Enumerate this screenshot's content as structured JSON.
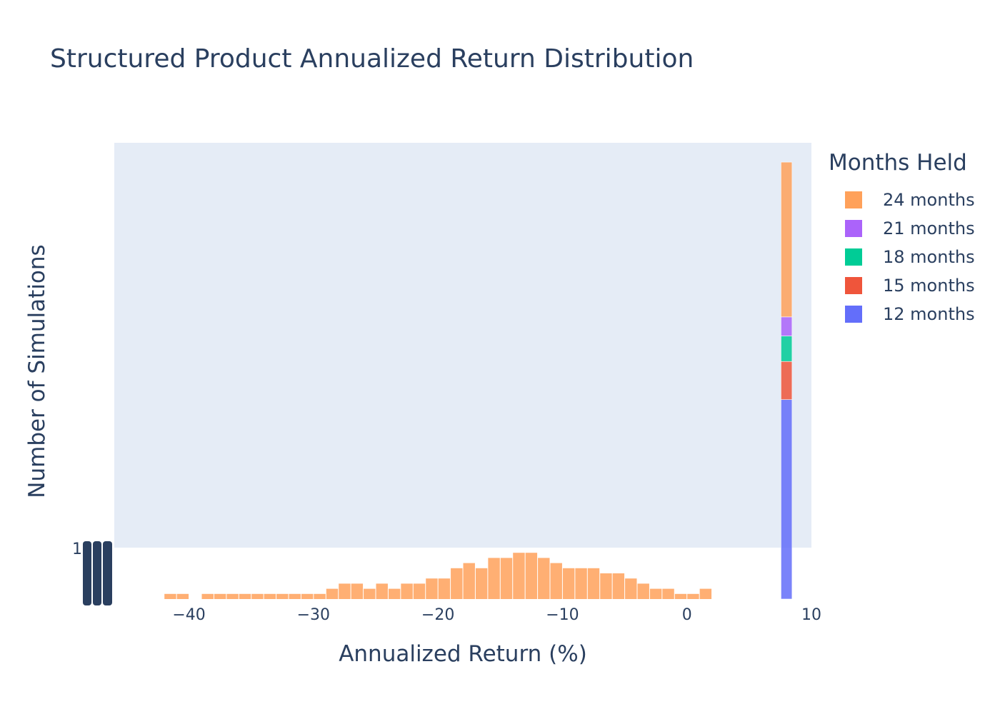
{
  "title": "Structured Product Annualized Return Distribution",
  "chart_data": {
    "type": "bar",
    "title": "Structured Product Annualized Return Distribution",
    "xlabel": "Annualized Return (%)",
    "ylabel": "Number of Simulations",
    "xlim": [
      -46,
      10
    ],
    "x_ticks": [
      "−40",
      "−30",
      "−20",
      "−10",
      "0",
      "10"
    ],
    "x_tick_values": [
      -40,
      -30,
      -20,
      -10,
      0,
      10
    ],
    "y_tick_visible": "1",
    "ylim": [
      0,
      900
    ],
    "y_break_at": 1,
    "bin_width": 1,
    "colors": {
      "24 months": "#ffa15a",
      "21 months": "#ab63fa",
      "18 months": "#00cc96",
      "15 months": "#ef553b",
      "12 months": "#636efa"
    },
    "legend": {
      "title": "Months Held",
      "position": "right",
      "items": [
        "24 months",
        "21 months",
        "18 months",
        "15 months",
        "12 months"
      ]
    },
    "stacked_bar": {
      "x": 7.5,
      "segments": [
        {
          "name": "12 months",
          "value": 350
        },
        {
          "name": "15 months",
          "value": 90
        },
        {
          "name": "18 months",
          "value": 60
        },
        {
          "name": "21 months",
          "value": 45
        },
        {
          "name": "24 months",
          "value": 365
        }
      ]
    },
    "series": [
      {
        "name": "24 months",
        "x": [
          -42,
          -41,
          -40,
          -39,
          -38,
          -37,
          -36,
          -35,
          -34,
          -33,
          -32,
          -31,
          -30,
          -29,
          -28,
          -27,
          -26,
          -25,
          -24,
          -23,
          -22,
          -21,
          -20,
          -19,
          -18,
          -17,
          -16,
          -15,
          -14,
          -13,
          -12,
          -11,
          -10,
          -9,
          -8,
          -7,
          -6,
          -5,
          -4,
          -3,
          -2,
          -1,
          0,
          1
        ],
        "values": [
          0.1,
          0.1,
          0,
          0.1,
          0.1,
          0.1,
          0.1,
          0.1,
          0.1,
          0.1,
          0.1,
          0.1,
          0.1,
          0.2,
          0.3,
          0.3,
          0.2,
          0.3,
          0.2,
          0.3,
          0.3,
          0.4,
          0.4,
          0.6,
          0.7,
          0.6,
          0.8,
          0.8,
          0.9,
          0.9,
          0.8,
          0.7,
          0.6,
          0.6,
          0.6,
          0.5,
          0.5,
          0.4,
          0.3,
          0.2,
          0.2,
          0.1,
          0.1,
          0.2
        ]
      }
    ]
  }
}
